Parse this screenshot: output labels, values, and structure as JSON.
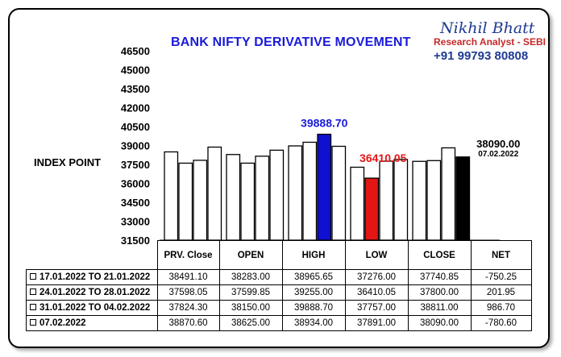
{
  "header": {
    "title": "BANK NIFTY DERIVATIVE MOVEMENT",
    "brand_name": "Nikhil Bhatt",
    "brand_role": "Research Analyst - SEBI",
    "brand_phone": "+91 99793 80808"
  },
  "chart_data": {
    "type": "bar",
    "title": "BANK NIFTY DERIVATIVE MOVEMENT",
    "ylabel": "INDEX POINT",
    "xlabel": "",
    "ylim": [
      31500,
      46500
    ],
    "yticks": [
      "31500",
      "33000",
      "34500",
      "36000",
      "37500",
      "39000",
      "40500",
      "42000",
      "43500",
      "45000",
      "46500"
    ],
    "categories": [
      "PRV. Close",
      "OPEN",
      "HIGH",
      "LOW",
      "CLOSE"
    ],
    "series": [
      {
        "name": "17.01.2022 TO 21.01.2022",
        "values": [
          38491.1,
          38283.0,
          38965.65,
          37276.0,
          37740.85
        ]
      },
      {
        "name": "24.01.2022 TO 28.01.2022",
        "values": [
          37598.05,
          37599.85,
          39255.0,
          36410.05,
          37800.0
        ]
      },
      {
        "name": "31.01.2022 TO 04.02.2022",
        "values": [
          37824.3,
          38150.0,
          39888.7,
          37757.0,
          38811.0
        ]
      },
      {
        "name": "07.02.2022",
        "values": [
          38870.6,
          38625.0,
          38934.0,
          37891.0,
          38090.0
        ]
      }
    ],
    "highlights": [
      {
        "category": "HIGH",
        "series": "31.01.2022 TO 04.02.2022",
        "color": "#1010d0"
      },
      {
        "category": "LOW",
        "series": "24.01.2022 TO 28.01.2022",
        "color": "#e31515"
      },
      {
        "category": "CLOSE",
        "series": "07.02.2022",
        "color": "#000000"
      }
    ],
    "annotations": [
      {
        "text": "39888.70",
        "color": "#1a1adb"
      },
      {
        "text": "36410.05",
        "color": "#e31515"
      },
      {
        "text": "38090.00",
        "sub": "07.02.2022",
        "color": "#000000"
      }
    ],
    "grid": false,
    "legend": "table-below"
  },
  "table": {
    "headers": [
      "PRV. Close",
      "OPEN",
      "HIGH",
      "LOW",
      "CLOSE",
      "NET"
    ],
    "rows": [
      {
        "label": "17.01.2022 TO 21.01.2022",
        "cells": [
          "38491.10",
          "38283.00",
          "38965.65",
          "37276.00",
          "37740.85",
          "-750.25"
        ]
      },
      {
        "label": "24.01.2022 TO 28.01.2022",
        "cells": [
          "37598.05",
          "37599.85",
          "39255.00",
          "36410.05",
          "37800.00",
          "201.95"
        ]
      },
      {
        "label": "31.01.2022 TO 04.02.2022",
        "cells": [
          "37824.30",
          "38150.00",
          "39888.70",
          "37757.00",
          "38811.00",
          "986.70"
        ]
      },
      {
        "label": "07.02.2022",
        "cells": [
          "38870.60",
          "38625.00",
          "38934.00",
          "37891.00",
          "38090.00",
          "-780.60"
        ]
      }
    ]
  }
}
